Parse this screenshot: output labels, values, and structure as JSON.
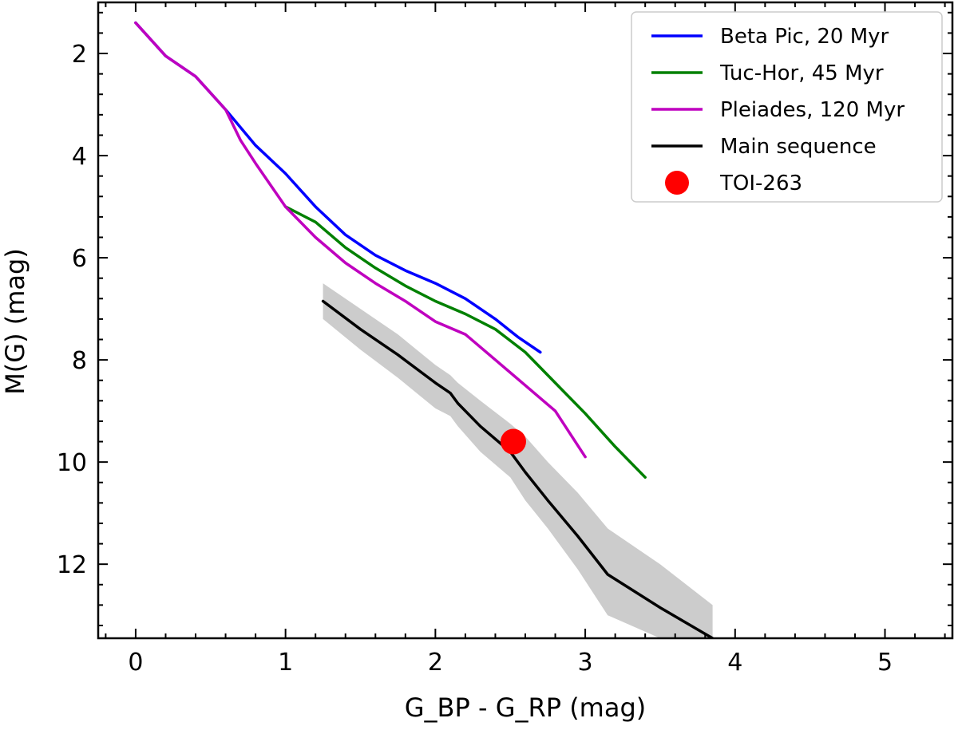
{
  "chart_data": {
    "type": "line",
    "title": "",
    "xlabel": "G_BP - G_RP (mag)",
    "ylabel": "M(G) (mag)",
    "xlim": [
      -0.25,
      5.45
    ],
    "ylim": [
      13.45,
      1.0
    ],
    "y_inverted": true,
    "grid": false,
    "legend_position": "top-right",
    "x_ticks": [
      0,
      1,
      2,
      3,
      4,
      5
    ],
    "y_ticks": [
      2,
      4,
      6,
      8,
      10,
      12
    ],
    "series": [
      {
        "name": "Beta Pic, 20 Myr",
        "color": "#0000ff",
        "x": [
          0.0,
          0.2,
          0.4,
          0.6,
          0.8,
          1.0,
          1.2,
          1.4,
          1.6,
          1.8,
          2.0,
          2.2,
          2.4,
          2.55,
          2.7
        ],
        "y": [
          1.4,
          2.05,
          2.45,
          3.1,
          3.8,
          4.35,
          5.0,
          5.55,
          5.95,
          6.25,
          6.5,
          6.8,
          7.2,
          7.55,
          7.85
        ]
      },
      {
        "name": "Tuc-Hor, 45 Myr",
        "color": "#008000",
        "x": [
          1.0,
          1.2,
          1.4,
          1.6,
          1.8,
          2.0,
          2.2,
          2.4,
          2.6,
          2.8,
          3.0,
          3.2,
          3.4
        ],
        "y": [
          5.0,
          5.3,
          5.8,
          6.2,
          6.55,
          6.85,
          7.1,
          7.4,
          7.85,
          8.45,
          9.05,
          9.7,
          10.3
        ]
      },
      {
        "name": "Pleiades, 120 Myr",
        "color": "#bf00bf",
        "x": [
          0.0,
          0.2,
          0.4,
          0.6,
          0.7,
          0.8,
          1.0,
          1.2,
          1.4,
          1.6,
          1.8,
          2.0,
          2.2,
          2.4,
          2.6,
          2.8,
          3.0
        ],
        "y": [
          1.4,
          2.05,
          2.45,
          3.1,
          3.7,
          4.15,
          5.0,
          5.6,
          6.1,
          6.5,
          6.85,
          7.25,
          7.5,
          8.0,
          8.5,
          9.0,
          9.9
        ]
      },
      {
        "name": "Main sequence",
        "color": "#000000",
        "x": [
          1.25,
          1.5,
          1.75,
          2.0,
          2.1,
          2.15,
          2.3,
          2.5,
          2.6,
          2.75,
          2.95,
          3.15,
          3.5,
          3.85
        ],
        "y": [
          6.85,
          7.4,
          7.9,
          8.45,
          8.65,
          8.85,
          9.3,
          9.8,
          10.2,
          10.75,
          11.45,
          12.2,
          12.85,
          13.45
        ],
        "band_upper": [
          6.5,
          7.0,
          7.5,
          8.1,
          8.3,
          8.45,
          8.8,
          9.25,
          9.5,
          10.0,
          10.6,
          11.3,
          12.0,
          12.8
        ],
        "band_lower": [
          7.2,
          7.8,
          8.35,
          8.95,
          9.1,
          9.3,
          9.8,
          10.3,
          10.75,
          11.3,
          12.1,
          13.0,
          13.45,
          13.45
        ],
        "band_color": "#cccccc"
      }
    ],
    "points": [
      {
        "name": "TOI-263",
        "color": "#ff0000",
        "x": 2.52,
        "y": 9.6
      }
    ]
  }
}
